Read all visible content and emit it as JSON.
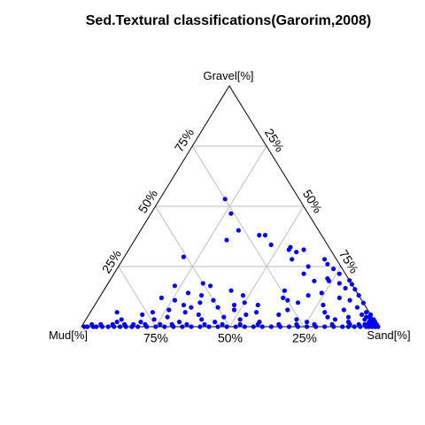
{
  "chart_data": {
    "type": "ternary-scatter",
    "title": "Sed.Textural classifications(Garorim,2008)",
    "axes": {
      "top": "Gravel[%]",
      "left": "Mud[%]",
      "right": "Sand[%]"
    },
    "grid": true,
    "marker_color": "#0000ff",
    "ticks": {
      "gravel_side": [
        "25%",
        "50%",
        "75%"
      ],
      "sand_side": [
        "25%",
        "50%",
        "75%"
      ],
      "mud_side": [
        "75%",
        "50%",
        "25%"
      ]
    },
    "points_columns": [
      "gravel",
      "sand",
      "mud"
    ],
    "points": [
      [
        53,
        22,
        25
      ],
      [
        47,
        27,
        26
      ],
      [
        40,
        33,
        27
      ],
      [
        38,
        41,
        21
      ],
      [
        38,
        43,
        19
      ],
      [
        36,
        31,
        33
      ],
      [
        34,
        47,
        19
      ],
      [
        33,
        54,
        13
      ],
      [
        32,
        54,
        14
      ],
      [
        32,
        59,
        9
      ],
      [
        31,
        57,
        12
      ],
      [
        29,
        20,
        51
      ],
      [
        28,
        57,
        15
      ],
      [
        28,
        68,
        4
      ],
      [
        25,
        64,
        11
      ],
      [
        26,
        70,
        4
      ],
      [
        24,
        73,
        3
      ],
      [
        22,
        64,
        14
      ],
      [
        22,
        76,
        2
      ],
      [
        20,
        84,
        -4
      ],
      [
        20,
        73,
        7
      ],
      [
        19,
        69,
        12
      ],
      [
        19,
        74,
        7
      ],
      [
        18,
        78,
        4
      ],
      [
        18,
        84,
        -2
      ],
      [
        18,
        32,
        50
      ],
      [
        17,
        23,
        60
      ],
      [
        17,
        35,
        48
      ],
      [
        16,
        81,
        3
      ],
      [
        16,
        87,
        -3
      ],
      [
        15,
        43,
        42
      ],
      [
        15,
        61,
        24
      ],
      [
        14,
        29,
        57
      ],
      [
        14,
        74,
        12
      ],
      [
        13,
        34,
        53
      ],
      [
        13,
        48,
        39
      ],
      [
        13,
        70,
        17
      ],
      [
        13,
        87,
        0
      ],
      [
        12,
        21,
        67
      ],
      [
        12,
        81,
        7
      ],
      [
        12,
        62,
        26
      ],
      [
        11,
        26,
        63
      ],
      [
        11,
        39,
        50
      ],
      [
        11,
        64,
        25
      ],
      [
        11,
        85,
        4
      ],
      [
        10,
        35,
        55
      ],
      [
        10,
        50,
        40
      ],
      [
        10,
        68,
        22
      ],
      [
        10,
        91,
        -1
      ],
      [
        9,
        30,
        61
      ],
      [
        9,
        47,
        44
      ],
      [
        9,
        55,
        36
      ],
      [
        9,
        77,
        14
      ],
      [
        8,
        33,
        59
      ],
      [
        8,
        42,
        50
      ],
      [
        8,
        89,
        3
      ],
      [
        7,
        26,
        67
      ],
      [
        7,
        48,
        45
      ],
      [
        7,
        66,
        27
      ],
      [
        7,
        85,
        8
      ],
      [
        6,
        9,
        85
      ],
      [
        6,
        21,
        73
      ],
      [
        6,
        32,
        62
      ],
      [
        6,
        56,
        38
      ],
      [
        6,
        79,
        15
      ],
      [
        6,
        93,
        1
      ],
      [
        5,
        18,
        77
      ],
      [
        5,
        37,
        58
      ],
      [
        5,
        53,
        42
      ],
      [
        5,
        64,
        31
      ],
      [
        5,
        92,
        3
      ],
      [
        4,
        27,
        69
      ],
      [
        4,
        46,
        50
      ],
      [
        4,
        81,
        15
      ],
      [
        4,
        88,
        8
      ],
      [
        4,
        94,
        2
      ],
      [
        3,
        12,
        85
      ],
      [
        3,
        23,
        74
      ],
      [
        3,
        39,
        58
      ],
      [
        3,
        52,
        45
      ],
      [
        3,
        71,
        26
      ],
      [
        3,
        84,
        13
      ],
      [
        3,
        94,
        3
      ],
      [
        2,
        11,
        87
      ],
      [
        2,
        19,
        79
      ],
      [
        2,
        32,
        66
      ],
      [
        2,
        44,
        54
      ],
      [
        2,
        59,
        39
      ],
      [
        2,
        75,
        23
      ],
      [
        2,
        89,
        9
      ],
      [
        2,
        97,
        1
      ],
      [
        1,
        3,
        96
      ],
      [
        1,
        6,
        93
      ],
      [
        1,
        10,
        89
      ],
      [
        1,
        14,
        85
      ],
      [
        1,
        17,
        82
      ],
      [
        1,
        21,
        78
      ],
      [
        1,
        26,
        73
      ],
      [
        1,
        30,
        69
      ],
      [
        1,
        35,
        64
      ],
      [
        1,
        41,
        58
      ],
      [
        1,
        47,
        52
      ],
      [
        1,
        53,
        46
      ],
      [
        1,
        59,
        40
      ],
      [
        1,
        66,
        33
      ],
      [
        1,
        72,
        27
      ],
      [
        1,
        78,
        21
      ],
      [
        1,
        84,
        15
      ],
      [
        1,
        90,
        9
      ],
      [
        1,
        96,
        3
      ],
      [
        0,
        1,
        99
      ],
      [
        0,
        2,
        98
      ],
      [
        0,
        4,
        96
      ],
      [
        0,
        5,
        95
      ],
      [
        0,
        7,
        93
      ],
      [
        0,
        9,
        91
      ],
      [
        0,
        11,
        89
      ],
      [
        0,
        13,
        87
      ],
      [
        0,
        15,
        85
      ],
      [
        0,
        17,
        83
      ],
      [
        0,
        19,
        81
      ],
      [
        0,
        22,
        78
      ],
      [
        0,
        25,
        75
      ],
      [
        0,
        28,
        72
      ],
      [
        0,
        31,
        69
      ],
      [
        0,
        34,
        66
      ],
      [
        0,
        37,
        63
      ],
      [
        0,
        40,
        60
      ],
      [
        0,
        43,
        57
      ],
      [
        0,
        46,
        54
      ],
      [
        0,
        49,
        51
      ],
      [
        0,
        52,
        48
      ],
      [
        0,
        55,
        45
      ],
      [
        0,
        58,
        42
      ],
      [
        0,
        61,
        39
      ],
      [
        0,
        64,
        36
      ],
      [
        0,
        67,
        33
      ],
      [
        0,
        70,
        30
      ],
      [
        0,
        73,
        27
      ],
      [
        0,
        76,
        24
      ],
      [
        0,
        79,
        21
      ],
      [
        0,
        82,
        18
      ],
      [
        0,
        85,
        15
      ],
      [
        0,
        88,
        12
      ],
      [
        0,
        90,
        10
      ],
      [
        0,
        92,
        8
      ],
      [
        0,
        94,
        6
      ],
      [
        0,
        96,
        4
      ],
      [
        0,
        97,
        3
      ],
      [
        0,
        98,
        2
      ],
      [
        0,
        99,
        1
      ],
      [
        0,
        100,
        0
      ],
      [
        1,
        97,
        2
      ],
      [
        2,
        96,
        2
      ],
      [
        3,
        96,
        1
      ],
      [
        4,
        95,
        1
      ],
      [
        2,
        98,
        0
      ],
      [
        1,
        98,
        1
      ],
      [
        0,
        99,
        1
      ],
      [
        1,
        99,
        0
      ],
      [
        3,
        97,
        0
      ],
      [
        5,
        95,
        0
      ],
      [
        2,
        97,
        1
      ],
      [
        1,
        95,
        4
      ],
      [
        1,
        93,
        6
      ]
    ]
  }
}
